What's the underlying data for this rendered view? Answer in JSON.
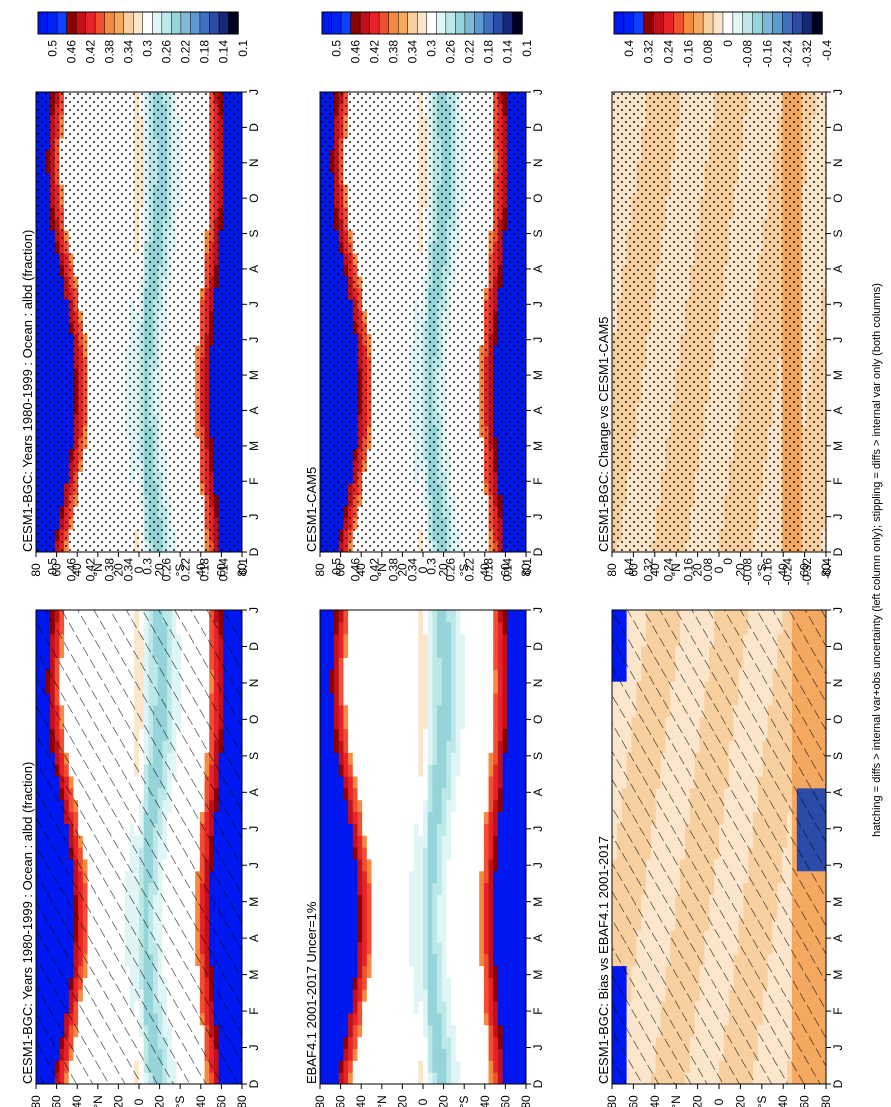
{
  "footer": "hatching = diffs > internal var+obs uncertainty (left column only); stippling = diffs > internal var only (both columns)",
  "chart_data": [
    {
      "type": "heatmap",
      "title": "CESM1-BGC: Years 1980-1999 : Ocean : albd (fraction)",
      "months": [
        "D",
        "J",
        "F",
        "M",
        "A",
        "M",
        "J",
        "J",
        "A",
        "S",
        "O",
        "N",
        "D",
        "J"
      ],
      "lat_ticks": [
        "80",
        "60",
        "40",
        "°N",
        "20",
        "0",
        "20",
        "°S",
        "40",
        "60",
        "80"
      ],
      "colorbar": [
        "0.5",
        "0.46",
        "0.42",
        "0.38",
        "0.34",
        "0.3",
        "0.26",
        "0.22",
        "0.18",
        "0.14",
        "0.1"
      ],
      "pattern": "hatch",
      "kind": "abs"
    },
    {
      "type": "heatmap",
      "title": "CESM1-BGC: Years 1980-1999 : Ocean : albd (fraction)",
      "months": [
        "D",
        "J",
        "F",
        "M",
        "A",
        "M",
        "J",
        "J",
        "A",
        "S",
        "O",
        "N",
        "D",
        "J"
      ],
      "lat_ticks": [
        "80",
        "60",
        "40",
        "°N",
        "20",
        "0",
        "20",
        "°S",
        "40",
        "60",
        "80"
      ],
      "colorbar": [
        "0.5",
        "0.46",
        "0.42",
        "0.38",
        "0.34",
        "0.3",
        "0.26",
        "0.22",
        "0.18",
        "0.14",
        "0.1"
      ],
      "pattern": "stipple",
      "kind": "abs"
    },
    {
      "type": "heatmap",
      "title": "EBAF4.1 2001-2017 Uncer=1%",
      "months": [
        "D",
        "J",
        "F",
        "M",
        "A",
        "M",
        "J",
        "J",
        "A",
        "S",
        "O",
        "N",
        "D",
        "J"
      ],
      "lat_ticks": [
        "80",
        "60",
        "40",
        "°N",
        "20",
        "0",
        "20",
        "°S",
        "40",
        "60",
        "80"
      ],
      "colorbar": [
        "0.5",
        "0.46",
        "0.42",
        "0.38",
        "0.34",
        "0.3",
        "0.26",
        "0.22",
        "0.18",
        "0.14",
        "0.1"
      ],
      "pattern": "none",
      "kind": "abs"
    },
    {
      "type": "heatmap",
      "title": "CESM1-CAM5",
      "months": [
        "D",
        "J",
        "F",
        "M",
        "A",
        "M",
        "J",
        "J",
        "A",
        "S",
        "O",
        "N",
        "D",
        "J"
      ],
      "lat_ticks": [
        "80",
        "60",
        "40",
        "°N",
        "20",
        "0",
        "20",
        "°S",
        "40",
        "60",
        "80"
      ],
      "colorbar": [
        "0.5",
        "0.46",
        "0.42",
        "0.38",
        "0.34",
        "0.3",
        "0.26",
        "0.22",
        "0.18",
        "0.14",
        "0.1"
      ],
      "pattern": "stipple",
      "kind": "abs"
    },
    {
      "type": "heatmap",
      "title": "CESM1-BGC: Bias vs EBAF4.1 2001-2017",
      "months": [
        "D",
        "J",
        "F",
        "M",
        "A",
        "M",
        "J",
        "J",
        "A",
        "S",
        "O",
        "N",
        "D",
        "J"
      ],
      "lat_ticks": [
        "80",
        "60",
        "40",
        "°N",
        "20",
        "0",
        "20",
        "°S",
        "40",
        "60",
        "80"
      ],
      "colorbar": [
        "0.4",
        "0.32",
        "0.24",
        "0.16",
        "0.08",
        "0",
        "-0.08",
        "-0.16",
        "-0.24",
        "-0.32",
        "-0.4"
      ],
      "pattern": "hatch",
      "kind": "bias"
    },
    {
      "type": "heatmap",
      "title": "CESM1-BGC: Change vs CESM1-CAM5",
      "months": [
        "D",
        "J",
        "F",
        "M",
        "A",
        "M",
        "J",
        "J",
        "A",
        "S",
        "O",
        "N",
        "D",
        "J"
      ],
      "lat_ticks": [
        "80",
        "60",
        "40",
        "°N",
        "20",
        "0",
        "20",
        "°S",
        "40",
        "60",
        "80"
      ],
      "colorbar": [
        "0.4",
        "0.32",
        "0.24",
        "0.16",
        "0.08",
        "0",
        "-0.08",
        "-0.16",
        "-0.24",
        "-0.32",
        "-0.4"
      ],
      "pattern": "stipple",
      "kind": "change"
    }
  ],
  "colors": {
    "scale": [
      "#0018f0",
      "#0022f8",
      "#1040ff",
      "#8b0000",
      "#c0101a",
      "#e8222a",
      "#f05030",
      "#f58a40",
      "#f5a860",
      "#f8d0a0",
      "#fbe6cc",
      "#ffffff",
      "#e0f5f5",
      "#bde8e8",
      "#95d4d8",
      "#7fb8d8",
      "#5c9ad0",
      "#3f70c0",
      "#2a4ca8",
      "#16287a",
      "#000020"
    ]
  }
}
